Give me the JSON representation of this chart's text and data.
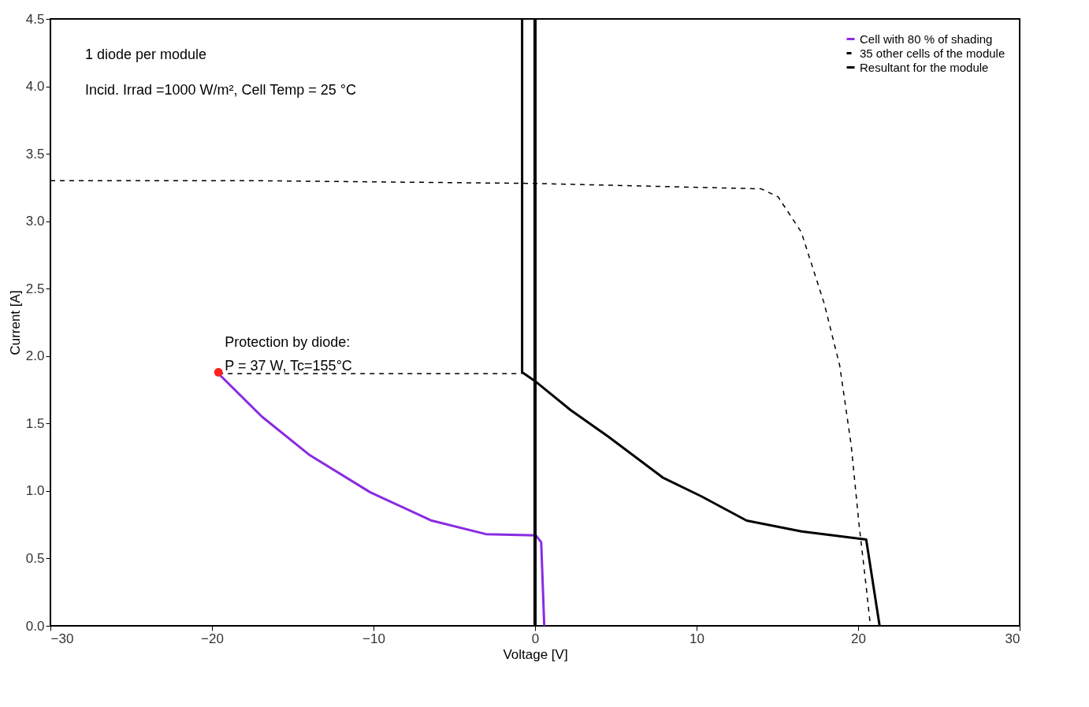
{
  "chart_data": {
    "type": "line",
    "xlabel": "Voltage [V]",
    "ylabel": "Current [A]",
    "xlim": [
      -30,
      30
    ],
    "xticks": [
      -30,
      -20,
      -10,
      0,
      10,
      20,
      30
    ],
    "ylim": [
      0,
      4.5
    ],
    "yticks": [
      {
        "value": 0,
        "label": "0.0"
      },
      {
        "value": 0.5,
        "label": "0.5"
      },
      {
        "value": 1,
        "label": "1.0"
      },
      {
        "value": 1.5,
        "label": "1.5"
      },
      {
        "value": 2,
        "label": "2.0"
      },
      {
        "value": 2.5,
        "label": "2.5"
      },
      {
        "value": 3,
        "label": "3.0"
      },
      {
        "value": 3.5,
        "label": "3.5"
      },
      {
        "value": 4,
        "label": "4.0"
      },
      {
        "value": 4.5,
        "label": "4.5"
      }
    ],
    "grid": false,
    "legend": "top right",
    "series": [
      {
        "name": "Cell with 80 % of shading",
        "color": "#8a2be2",
        "line_style": "solid",
        "x": [
          -19.6,
          -16.9,
          -14,
          -10.2,
          -6.4,
          -3.05,
          0.05,
          0.38,
          0.57
        ],
        "values": [
          1.87,
          1.55,
          1.27,
          0.99,
          0.78,
          0.68,
          0.67,
          0.62,
          0
        ]
      },
      {
        "name": "35 other cells of the module",
        "color": "#000000",
        "line_style": "dashed",
        "x": [
          -30,
          -17,
          0,
          14,
          15.05,
          16.48,
          17.9,
          18.86,
          19.57,
          20.05,
          20.5,
          20.76
        ],
        "values": [
          3.3,
          3.3,
          3.28,
          3.24,
          3.18,
          2.92,
          2.39,
          1.93,
          1.34,
          0.76,
          0.29,
          0
        ]
      },
      {
        "name": "Resultant for the module",
        "color": "#000000",
        "line_style": "solid",
        "x": [
          -0.8,
          -0.8,
          0.05,
          2.2,
          4.57,
          7.9,
          10.3,
          13.1,
          16.5,
          20.5,
          21.33
        ],
        "values": [
          4.5,
          1.88,
          1.81,
          1.6,
          1.4,
          1.1,
          0.96,
          0.78,
          0.7,
          0.64,
          0
        ]
      },
      {
        "type": "line",
        "color": "#000000",
        "line_style": "dashed",
        "x": [
          -19.6,
          -0.8
        ],
        "values": [
          1.87,
          1.87
        ]
      },
      {
        "type": "scatter",
        "color": "#ff2020",
        "marker": "circle",
        "x": [
          -19.6
        ],
        "values": [
          1.88
        ]
      }
    ],
    "ref_lines": [
      {
        "axis": "x",
        "value": 0,
        "color": "#000000"
      }
    ],
    "annotations": [
      "1 diode per module",
      "Incid. Irrad =1000 W/m², Cell Temp = 25 °C",
      {
        "text": "Protection by diode:\nP = 37 W, Tc=155°C",
        "x": -19.6,
        "y": 1.88
      }
    ]
  }
}
